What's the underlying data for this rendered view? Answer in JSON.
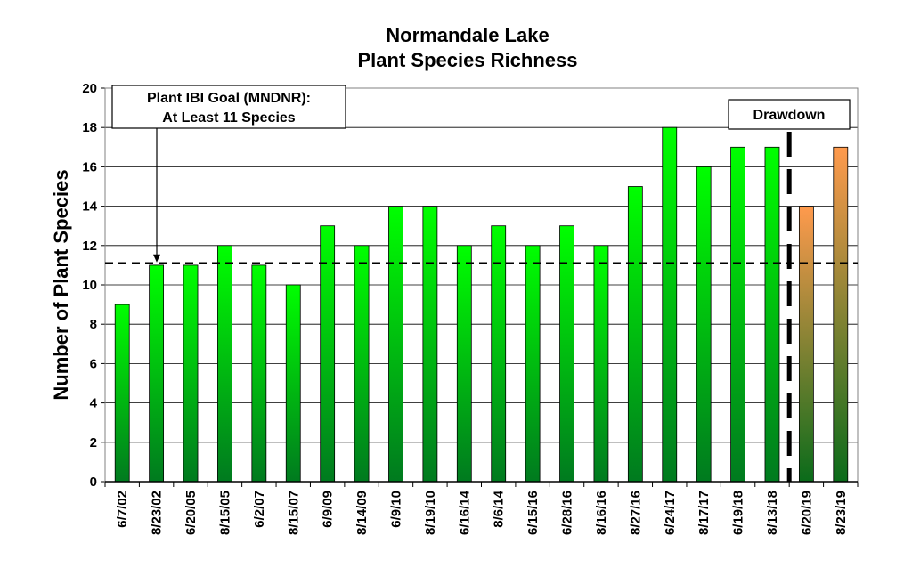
{
  "chart_data": {
    "type": "bar",
    "title": [
      "Normandale Lake",
      "Plant Species Richness"
    ],
    "ylabel": "Number of Plant Species",
    "xlabel": "",
    "ylim": [
      0,
      20
    ],
    "yticks": [
      0,
      2,
      4,
      6,
      8,
      10,
      12,
      14,
      16,
      18,
      20
    ],
    "grid": true,
    "categories": [
      "6/7/02",
      "8/23/02",
      "6/20/05",
      "8/15/05",
      "6/2/07",
      "8/15/07",
      "6/9/09",
      "8/14/09",
      "6/9/10",
      "8/19/10",
      "6/16/14",
      "8/6/14",
      "6/15/16",
      "6/28/16",
      "8/16/16",
      "8/27/16",
      "6/24/17",
      "8/17/17",
      "6/19/18",
      "8/13/18",
      "6/20/19",
      "8/23/19"
    ],
    "values": [
      9,
      11,
      11,
      12,
      11,
      10,
      13,
      12,
      14,
      14,
      12,
      13,
      12,
      13,
      12,
      15,
      18,
      16,
      17,
      17,
      14,
      17
    ],
    "bar_colors": [
      "green",
      "green",
      "green",
      "green",
      "green",
      "green",
      "green",
      "green",
      "green",
      "green",
      "green",
      "green",
      "green",
      "green",
      "green",
      "green",
      "green",
      "green",
      "green",
      "green",
      "orange",
      "orange"
    ],
    "colors": {
      "green_top": "#00ff00",
      "green_bottom": "#007a1f",
      "orange_top": "#ff9a4d",
      "orange_bottom": "#0a6b1a",
      "goal_line": "#000000",
      "grid": "#000000"
    },
    "goal": {
      "value": 11.1,
      "label_line1": "Plant IBI Goal (MNDNR):",
      "label_line2": "At Least 11 Species"
    },
    "drawdown": {
      "label": "Drawdown",
      "between": [
        "8/13/18",
        "6/20/19"
      ]
    }
  }
}
